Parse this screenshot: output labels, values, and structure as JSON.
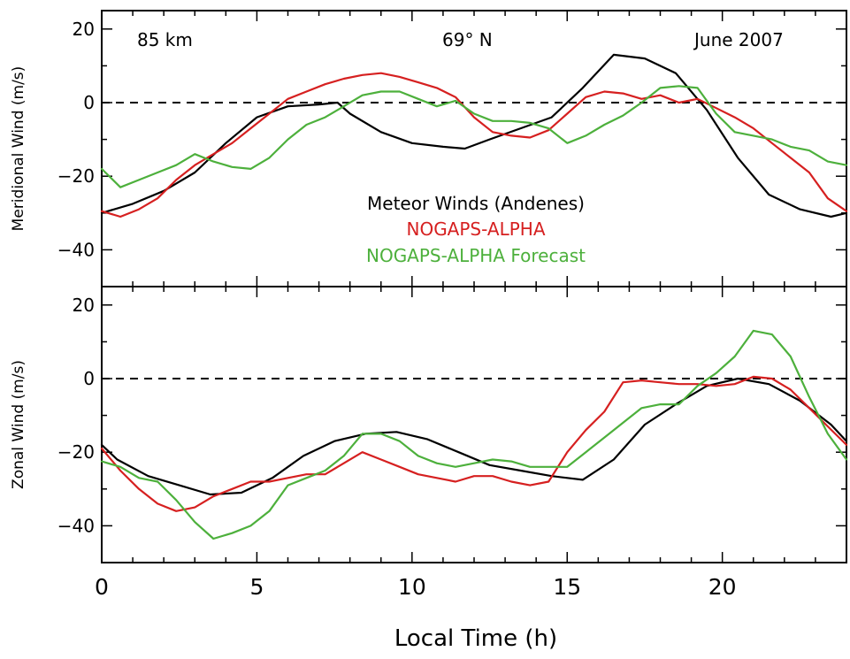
{
  "chart_data": [
    {
      "type": "line",
      "panel": "top",
      "ylabel": "Meridional Wind (m/s)",
      "xlabel": "",
      "xlim": [
        0,
        24
      ],
      "ylim": [
        -50,
        25
      ],
      "yticks": [
        -40,
        -20,
        0,
        20
      ],
      "xticks": [
        0,
        5,
        10,
        15,
        20
      ],
      "zero_line": "dashed",
      "annotations": [
        "85 km",
        "69° N",
        "June 2007"
      ],
      "legend_placement": "inside bottom-center",
      "series": [
        {
          "name": "Meteor Winds (Andenes)",
          "color": "#000000",
          "x": [
            0,
            1,
            2,
            3,
            4,
            5,
            6,
            7,
            7.6,
            8,
            9,
            10,
            11,
            11.7,
            12.5,
            13.5,
            14.5,
            15.5,
            16.5,
            17.5,
            18.5,
            19.5,
            20.5,
            21.5,
            22.5,
            23.5,
            24
          ],
          "values": [
            -30,
            -27.5,
            -24,
            -19,
            -11,
            -4,
            -1,
            -0.5,
            0,
            -3,
            -8,
            -11,
            -12,
            -12.5,
            -10,
            -7,
            -4,
            4,
            13,
            12,
            8,
            -2,
            -15,
            -25,
            -29,
            -31,
            -30
          ]
        },
        {
          "name": "NOGAPS-ALPHA",
          "color": "#d62020",
          "x": [
            0,
            0.6,
            1.2,
            1.8,
            2.4,
            3,
            3.6,
            4.2,
            4.8,
            5.4,
            6,
            6.6,
            7.2,
            7.8,
            8.4,
            9,
            9.6,
            10.2,
            10.8,
            11.4,
            12,
            12.6,
            13.2,
            13.8,
            14.4,
            15,
            15.6,
            16.2,
            16.8,
            17.4,
            18,
            18.6,
            19.2,
            19.8,
            20.4,
            21,
            21.6,
            22.2,
            22.8,
            23.4,
            24
          ],
          "values": [
            -29.5,
            -31,
            -29,
            -26,
            -21,
            -17,
            -14,
            -11,
            -7,
            -3,
            1,
            3,
            5,
            6.5,
            7.5,
            8,
            7,
            5.5,
            4,
            1.5,
            -4,
            -8,
            -9,
            -9.5,
            -7.5,
            -3,
            1.5,
            3,
            2.5,
            1,
            2,
            0,
            1,
            -1.5,
            -4,
            -7,
            -11,
            -15,
            -19,
            -26,
            -29.5
          ]
        },
        {
          "name": "NOGAPS-ALPHA Forecast",
          "color": "#4db03c",
          "x": [
            0,
            0.6,
            1.2,
            1.8,
            2.4,
            3,
            3.6,
            4.2,
            4.8,
            5.4,
            6,
            6.6,
            7.2,
            7.8,
            8.4,
            9,
            9.6,
            10.2,
            10.8,
            11.4,
            12,
            12.6,
            13.2,
            13.8,
            14.4,
            15,
            15.6,
            16.2,
            16.8,
            17.4,
            18,
            18.6,
            19.2,
            19.8,
            20.4,
            21,
            21.6,
            22.2,
            22.8,
            23.4,
            24
          ],
          "values": [
            -18,
            -23,
            -21,
            -19,
            -17,
            -14,
            -16,
            -17.5,
            -18,
            -15,
            -10,
            -6,
            -4,
            -1,
            2,
            3,
            3,
            1,
            -1,
            0.5,
            -3,
            -5,
            -5,
            -5.5,
            -7,
            -11,
            -9,
            -6,
            -3.5,
            0,
            4,
            4.5,
            4,
            -3,
            -8,
            -9,
            -10,
            -12,
            -13,
            -16,
            -17
          ]
        }
      ]
    },
    {
      "type": "line",
      "panel": "bottom",
      "ylabel": "Zonal Wind (m/s)",
      "xlabel": "Local Time (h)",
      "xlim": [
        0,
        24
      ],
      "ylim": [
        -50,
        25
      ],
      "yticks": [
        -40,
        -20,
        0,
        20
      ],
      "xticks": [
        0,
        5,
        10,
        15,
        20
      ],
      "xtick_labels": [
        "0",
        "5",
        "10",
        "15",
        "20"
      ],
      "zero_line": "dashed",
      "series": [
        {
          "name": "Meteor Winds (Andenes)",
          "color": "#000000",
          "x": [
            0,
            0.5,
            1.5,
            2.5,
            3.5,
            4.5,
            5.5,
            6.5,
            7.5,
            8.5,
            9.5,
            10.5,
            11.5,
            12.5,
            13.5,
            14.5,
            15.5,
            16.5,
            17.5,
            18.5,
            19.5,
            20.5,
            21.5,
            22.5,
            23.5,
            24
          ],
          "values": [
            -18,
            -22,
            -26.5,
            -29,
            -31.5,
            -31,
            -27,
            -21,
            -17,
            -15,
            -14.5,
            -16.5,
            -20,
            -23.5,
            -25,
            -26.5,
            -27.5,
            -22,
            -12.5,
            -7,
            -2,
            0,
            -1.5,
            -6,
            -12.5,
            -17
          ]
        },
        {
          "name": "NOGAPS-ALPHA",
          "color": "#d62020",
          "x": [
            0,
            0.6,
            1.2,
            1.8,
            2.4,
            3,
            3.6,
            4.2,
            4.8,
            5.4,
            6,
            6.6,
            7.2,
            7.8,
            8.4,
            9,
            9.6,
            10.2,
            10.8,
            11.4,
            12,
            12.6,
            13.2,
            13.8,
            14.4,
            15,
            15.6,
            16.2,
            16.8,
            17.4,
            18,
            18.6,
            19.2,
            19.8,
            20.4,
            21,
            21.6,
            22.2,
            22.8,
            23.4,
            24
          ],
          "values": [
            -19,
            -25,
            -30,
            -34,
            -36,
            -35,
            -32,
            -30,
            -28,
            -28,
            -27,
            -26,
            -26,
            -23,
            -20,
            -22,
            -24,
            -26,
            -27,
            -28,
            -26.5,
            -26.5,
            -28,
            -29,
            -28,
            -20,
            -14,
            -9,
            -1,
            -0.5,
            -1,
            -1.5,
            -1.5,
            -2,
            -1.5,
            0.5,
            0,
            -3,
            -8,
            -13,
            -18
          ]
        },
        {
          "name": "NOGAPS-ALPHA Forecast",
          "color": "#4db03c",
          "x": [
            0,
            0.6,
            1.2,
            1.8,
            2.4,
            3,
            3.6,
            4.2,
            4.8,
            5.4,
            6,
            6.6,
            7.2,
            7.8,
            8.4,
            9,
            9.6,
            10.2,
            10.8,
            11.4,
            12,
            12.6,
            13.2,
            13.8,
            14.4,
            15,
            15.6,
            16.2,
            16.8,
            17.4,
            18,
            18.6,
            19.2,
            19.8,
            20.4,
            21,
            21.6,
            22.2,
            22.8,
            23.4,
            24
          ],
          "values": [
            -22.5,
            -24,
            -27,
            -28,
            -33,
            -39,
            -43.5,
            -42,
            -40,
            -36,
            -29,
            -27,
            -25,
            -21,
            -15,
            -15,
            -17,
            -21,
            -23,
            -24,
            -23,
            -22,
            -22.5,
            -24,
            -24,
            -24,
            -20,
            -16,
            -12,
            -8,
            -7,
            -7,
            -2,
            1.5,
            6,
            13,
            12,
            6,
            -5,
            -15,
            -22
          ]
        }
      ]
    }
  ],
  "legend": {
    "items": [
      {
        "label": "Meteor Winds (Andenes)",
        "color": "#000000"
      },
      {
        "label": "NOGAPS-ALPHA",
        "color": "#d62020"
      },
      {
        "label": "NOGAPS-ALPHA Forecast",
        "color": "#4db03c"
      }
    ]
  }
}
